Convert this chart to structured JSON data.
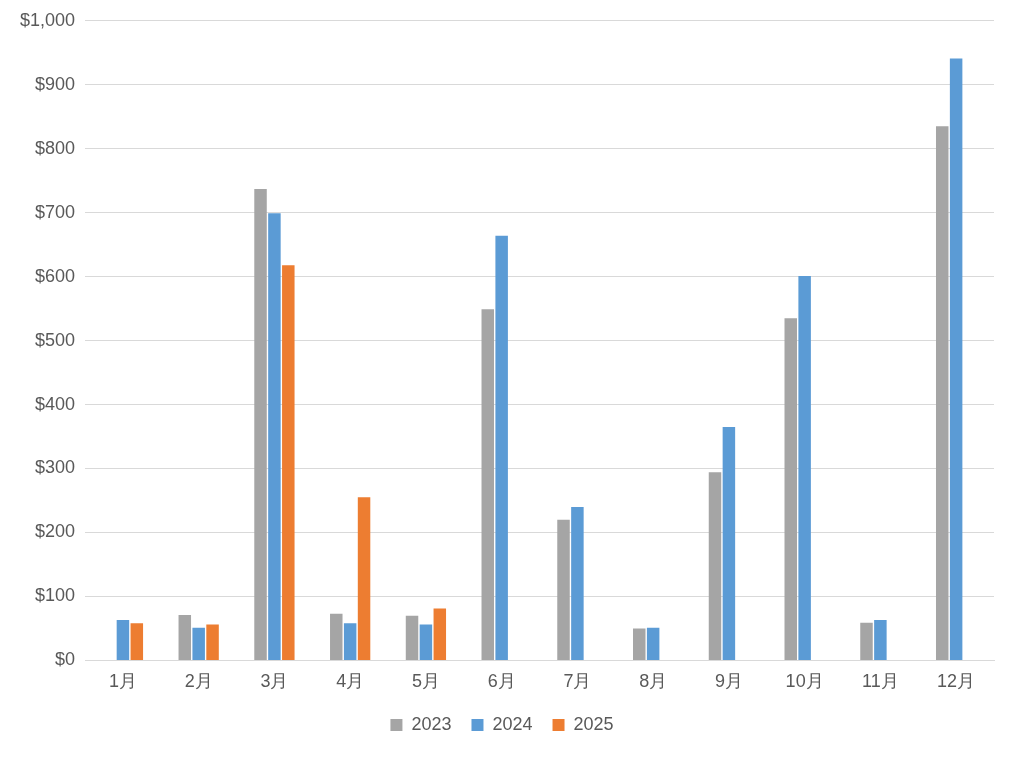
{
  "chart_data": {
    "type": "bar",
    "categories": [
      "1月",
      "2月",
      "3月",
      "4月",
      "5月",
      "6月",
      "7月",
      "8月",
      "9月",
      "10月",
      "11月",
      "12月"
    ],
    "series": [
      {
        "name": "2023",
        "color": "#a5a5a5",
        "values": [
          null,
          71,
          737,
          73,
          70,
          549,
          220,
          50,
          294,
          535,
          59,
          835
        ]
      },
      {
        "name": "2024",
        "color": "#5b9bd5",
        "values": [
          63,
          51,
          699,
          58,
          56,
          664,
          240,
          51,
          365,
          601,
          63,
          941
        ]
      },
      {
        "name": "2025",
        "color": "#ed7d31",
        "values": [
          58,
          56,
          618,
          255,
          81,
          null,
          null,
          null,
          null,
          null,
          null,
          null
        ]
      }
    ],
    "ylim": [
      0,
      1000
    ],
    "yticks": [
      {
        "value": 0,
        "label": "$0"
      },
      {
        "value": 100,
        "label": "$100"
      },
      {
        "value": 200,
        "label": "$200"
      },
      {
        "value": 300,
        "label": "$300"
      },
      {
        "value": 400,
        "label": "$400"
      },
      {
        "value": 500,
        "label": "$500"
      },
      {
        "value": 600,
        "label": "$600"
      },
      {
        "value": 700,
        "label": "$700"
      },
      {
        "value": 800,
        "label": "$800"
      },
      {
        "value": 900,
        "label": "$900"
      },
      {
        "value": 1000,
        "label": "$1,000"
      }
    ],
    "grid": "y",
    "legend": "bottom"
  }
}
